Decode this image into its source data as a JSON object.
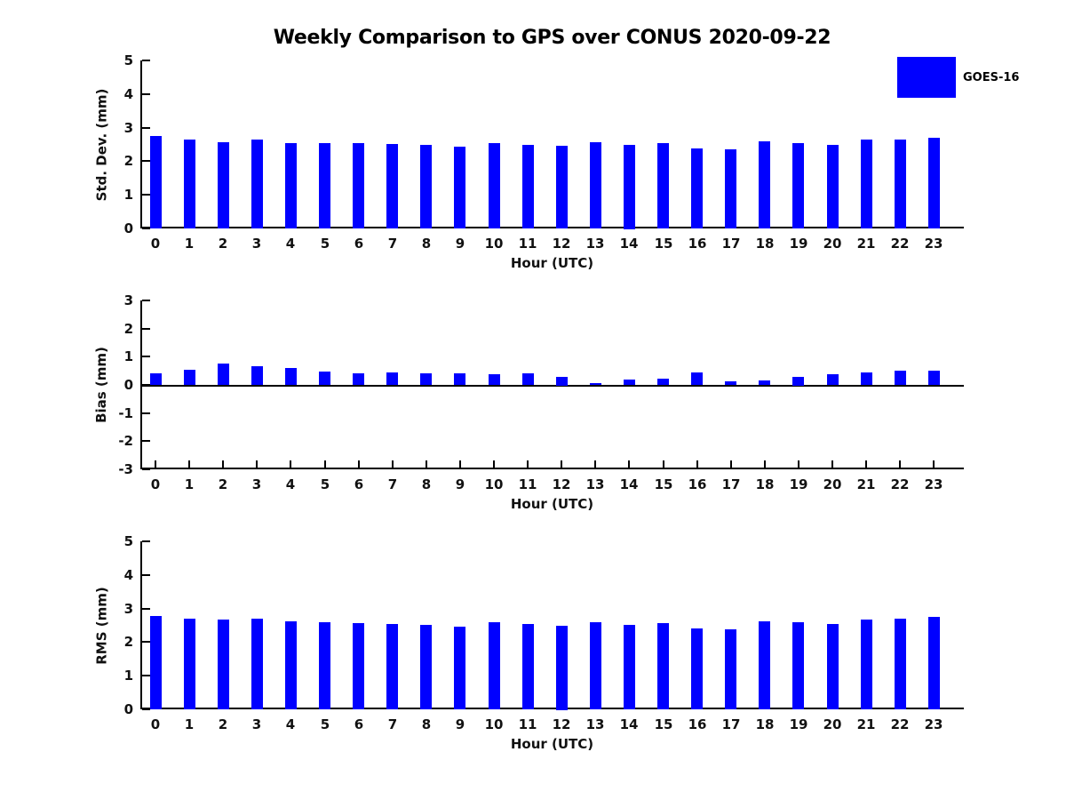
{
  "title": "Weekly Comparison to GPS over CONUS 2020-09-22",
  "legend": {
    "label": "GOES-16",
    "color": "#0000FF",
    "position": "top-right"
  },
  "chart_data": [
    {
      "type": "bar",
      "panel": "std-dev",
      "series_name": "GOES-16",
      "bar_color": "#0000FF",
      "xlabel": "Hour (UTC)",
      "ylabel": "Std. Dev. (mm)",
      "x": [
        0,
        1,
        2,
        3,
        4,
        5,
        6,
        7,
        8,
        9,
        10,
        11,
        12,
        13,
        14,
        15,
        16,
        17,
        18,
        19,
        20,
        21,
        22,
        23
      ],
      "values": [
        2.75,
        2.64,
        2.56,
        2.64,
        2.54,
        2.53,
        2.54,
        2.51,
        2.48,
        2.43,
        2.54,
        2.49,
        2.46,
        2.57,
        2.5,
        2.55,
        2.38,
        2.35,
        2.6,
        2.53,
        2.48,
        2.64,
        2.64,
        2.69
      ],
      "ylim": [
        0,
        5
      ],
      "yticks": [
        0,
        1,
        2,
        3,
        4,
        5
      ],
      "grid": false
    },
    {
      "type": "bar",
      "panel": "bias",
      "series_name": "GOES-16",
      "bar_color": "#0000FF",
      "xlabel": "Hour (UTC)",
      "ylabel": "Bias (mm)",
      "x": [
        0,
        1,
        2,
        3,
        4,
        5,
        6,
        7,
        8,
        9,
        10,
        11,
        12,
        13,
        14,
        15,
        16,
        17,
        18,
        19,
        20,
        21,
        22,
        23
      ],
      "values": [
        0.4,
        0.55,
        0.77,
        0.66,
        0.61,
        0.48,
        0.4,
        0.45,
        0.4,
        0.4,
        0.37,
        0.4,
        0.3,
        0.07,
        0.2,
        0.23,
        0.45,
        0.12,
        0.16,
        0.3,
        0.37,
        0.43,
        0.52,
        0.5
      ],
      "ylim": [
        -3,
        3
      ],
      "yticks": [
        -3,
        -2,
        -1,
        0,
        1,
        2,
        3
      ],
      "grid": false
    },
    {
      "type": "bar",
      "panel": "rms",
      "series_name": "GOES-16",
      "bar_color": "#0000FF",
      "xlabel": "Hour (UTC)",
      "ylabel": "RMS (mm)",
      "x": [
        0,
        1,
        2,
        3,
        4,
        5,
        6,
        7,
        8,
        9,
        10,
        11,
        12,
        13,
        14,
        15,
        16,
        17,
        18,
        19,
        20,
        21,
        22,
        23
      ],
      "values": [
        2.78,
        2.7,
        2.66,
        2.71,
        2.61,
        2.58,
        2.57,
        2.55,
        2.52,
        2.46,
        2.58,
        2.53,
        2.5,
        2.58,
        2.52,
        2.57,
        2.42,
        2.37,
        2.62,
        2.58,
        2.55,
        2.67,
        2.7,
        2.74
      ],
      "ylim": [
        0,
        5
      ],
      "yticks": [
        0,
        1,
        2,
        3,
        4,
        5
      ],
      "grid": false
    }
  ]
}
